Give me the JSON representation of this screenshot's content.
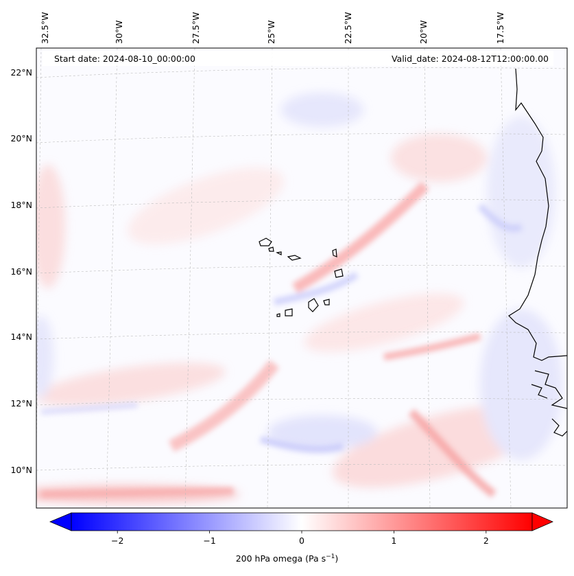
{
  "map": {
    "start_date": "Start date: 2024-08-10_00:00:00",
    "valid_date": "Valid_date: 2024-08-12T12:00:00.00",
    "lon_ticks": [
      "32.5°W",
      "30°W",
      "27.5°W",
      "25°W",
      "22.5°W",
      "20°W",
      "17.5°W"
    ],
    "lat_ticks": [
      "22°N",
      "20°N",
      "18°N",
      "16°N",
      "14°N",
      "12°N",
      "10°N"
    ],
    "field": "200 hPa omega",
    "colormap": "bwr",
    "extent": {
      "lon": [
        -32.7,
        -15.2
      ],
      "lat": [
        8.9,
        22.7
      ]
    }
  },
  "colorbar": {
    "ticks": [
      "−2",
      "−1",
      "0",
      "1",
      "2"
    ],
    "tick_values": [
      -2,
      -1,
      0,
      1,
      2
    ],
    "range": [
      -2.5,
      2.5
    ],
    "extend": "both",
    "label_main": "200 hPa omega (Pa s",
    "label_exp": "−1",
    "label_tail": ")",
    "colors": {
      "min": "#0000ff",
      "mid": "#ffffff",
      "max": "#ff0000"
    }
  }
}
